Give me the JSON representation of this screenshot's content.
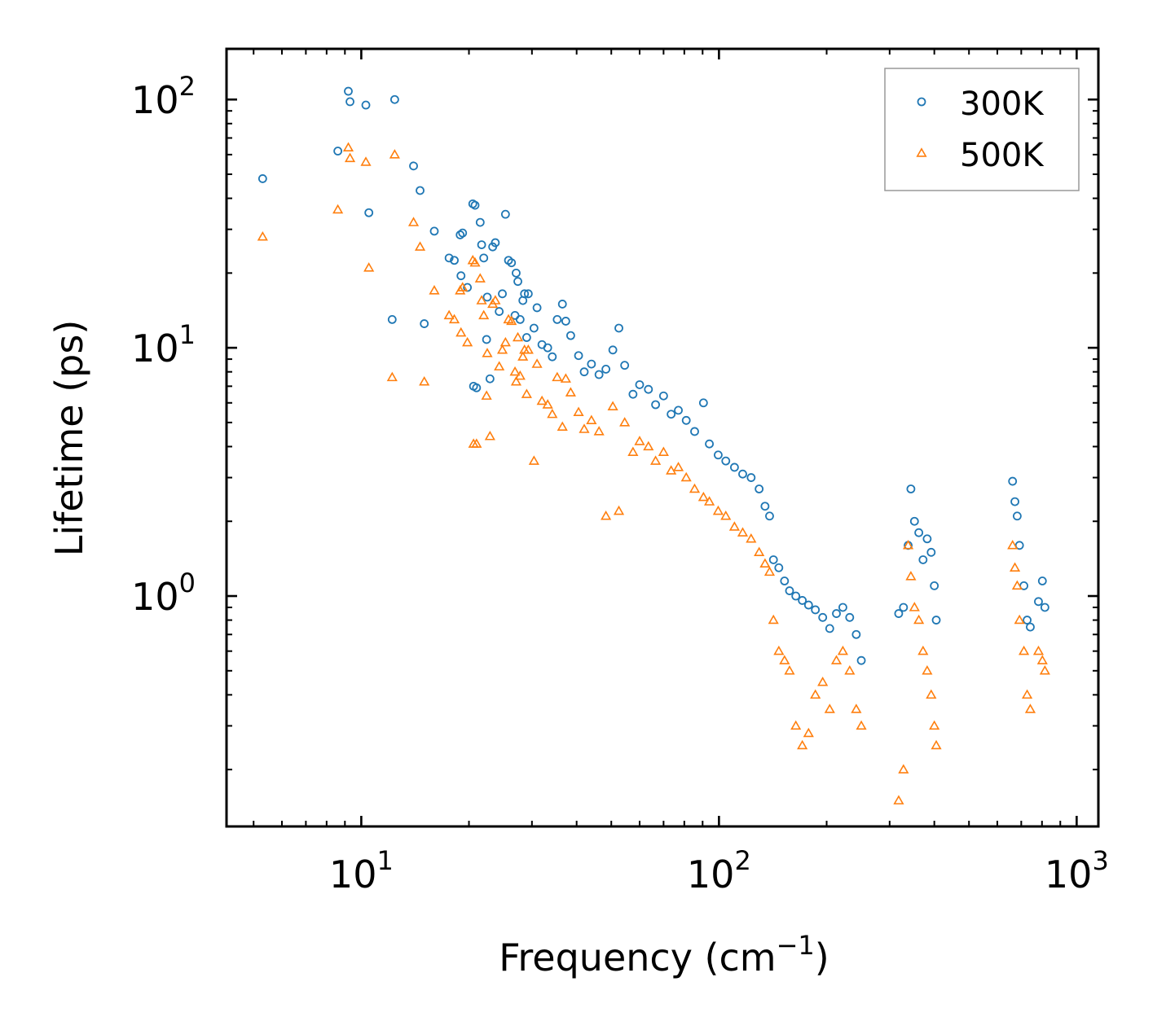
{
  "chart_data": {
    "type": "scatter",
    "title": "",
    "xlabel": "Frequency (cm",
    "xlabel_sup": "−1",
    "xlabel_end": ")",
    "ylabel": "Lifetime (ps)",
    "xscale": "log",
    "yscale": "log",
    "xlim": [
      4.2,
      1150
    ],
    "ylim": [
      0.118,
      160
    ],
    "x_ticks": [
      {
        "value": 10,
        "base": "10",
        "exp": "1"
      },
      {
        "value": 100,
        "base": "10",
        "exp": "2"
      },
      {
        "value": 1000,
        "base": "10",
        "exp": "3"
      }
    ],
    "y_ticks": [
      {
        "value": 1,
        "base": "10",
        "exp": "0"
      },
      {
        "value": 10,
        "base": "10",
        "exp": "1"
      },
      {
        "value": 100,
        "base": "10",
        "exp": "2"
      }
    ],
    "legend_position": "top-right",
    "series": [
      {
        "name": "300K",
        "color": "#1f77b4",
        "marker": "circle",
        "points": [
          [
            5.3,
            48
          ],
          [
            8.6,
            62
          ],
          [
            9.2,
            108
          ],
          [
            9.3,
            98
          ],
          [
            10.3,
            95
          ],
          [
            10.5,
            35
          ],
          [
            12.2,
            13
          ],
          [
            12.4,
            100
          ],
          [
            14,
            54
          ],
          [
            14.6,
            43
          ],
          [
            15,
            12.5
          ],
          [
            16,
            29.5
          ],
          [
            17.6,
            23
          ],
          [
            18.2,
            22.5
          ],
          [
            18.9,
            28.5
          ],
          [
            19,
            19.5
          ],
          [
            19.2,
            29
          ],
          [
            19.8,
            17.5
          ],
          [
            20.5,
            38
          ],
          [
            20.6,
            7
          ],
          [
            20.8,
            37.5
          ],
          [
            21,
            6.9
          ],
          [
            21.5,
            32
          ],
          [
            21.7,
            26
          ],
          [
            22,
            23
          ],
          [
            22.4,
            10.8
          ],
          [
            22.5,
            16
          ],
          [
            22.9,
            7.5
          ],
          [
            23.3,
            25.5
          ],
          [
            23.7,
            26.5
          ],
          [
            24.3,
            14
          ],
          [
            24.8,
            16.5
          ],
          [
            25.3,
            34.5
          ],
          [
            25.8,
            22.5
          ],
          [
            26.3,
            22
          ],
          [
            26.9,
            13.5
          ],
          [
            27.1,
            20
          ],
          [
            27.4,
            18.5
          ],
          [
            27.8,
            13
          ],
          [
            28.3,
            15.5
          ],
          [
            28.6,
            16.5
          ],
          [
            29,
            11
          ],
          [
            29.3,
            16.5
          ],
          [
            30.4,
            12
          ],
          [
            31,
            14.5
          ],
          [
            32,
            10.3
          ],
          [
            33.2,
            10
          ],
          [
            34.2,
            9.2
          ],
          [
            35.3,
            13
          ],
          [
            36.5,
            15
          ],
          [
            37.3,
            12.8
          ],
          [
            38.5,
            11.2
          ],
          [
            40.5,
            9.3
          ],
          [
            42,
            8
          ],
          [
            44,
            8.6
          ],
          [
            46.2,
            7.8
          ],
          [
            48.3,
            8.2
          ],
          [
            50.5,
            9.8
          ],
          [
            52.5,
            12
          ],
          [
            54.5,
            8.5
          ],
          [
            57.5,
            6.5
          ],
          [
            60,
            7.1
          ],
          [
            63.5,
            6.8
          ],
          [
            66.5,
            5.9
          ],
          [
            70,
            6.4
          ],
          [
            73.5,
            5.4
          ],
          [
            77,
            5.6
          ],
          [
            81,
            5.1
          ],
          [
            85.5,
            4.6
          ],
          [
            90.5,
            6
          ],
          [
            94,
            4.1
          ],
          [
            99.5,
            3.7
          ],
          [
            104.5,
            3.5
          ],
          [
            110.5,
            3.3
          ],
          [
            116.5,
            3.1
          ],
          [
            123,
            3
          ],
          [
            129.5,
            2.7
          ],
          [
            134.5,
            2.3
          ],
          [
            138.5,
            2.1
          ],
          [
            142,
            1.4
          ],
          [
            147,
            1.3
          ],
          [
            152.5,
            1.15
          ],
          [
            157.5,
            1.05
          ],
          [
            164,
            1
          ],
          [
            171,
            0.96
          ],
          [
            178,
            0.92
          ],
          [
            186,
            0.88
          ],
          [
            195,
            0.82
          ],
          [
            204,
            0.74
          ],
          [
            213,
            0.85
          ],
          [
            222,
            0.9
          ],
          [
            232,
            0.82
          ],
          [
            242,
            0.7
          ],
          [
            250,
            0.55
          ],
          [
            318,
            0.85
          ],
          [
            328,
            0.9
          ],
          [
            338,
            1.6
          ],
          [
            344,
            2.7
          ],
          [
            352,
            2
          ],
          [
            362,
            1.8
          ],
          [
            372,
            1.4
          ],
          [
            382,
            1.7
          ],
          [
            392,
            1.5
          ],
          [
            400,
            1.1
          ],
          [
            405,
            0.8
          ],
          [
            662,
            2.9
          ],
          [
            672,
            2.4
          ],
          [
            682,
            2.1
          ],
          [
            692,
            1.6
          ],
          [
            712,
            1.1
          ],
          [
            727,
            0.8
          ],
          [
            742,
            0.75
          ],
          [
            782,
            0.95
          ],
          [
            802,
            1.15
          ],
          [
            815,
            0.9
          ]
        ]
      },
      {
        "name": "500K",
        "color": "#ff7f0e",
        "marker": "triangle",
        "points": [
          [
            5.3,
            28
          ],
          [
            8.6,
            36
          ],
          [
            9.2,
            64
          ],
          [
            9.3,
            58
          ],
          [
            10.3,
            56
          ],
          [
            10.5,
            21
          ],
          [
            12.2,
            7.6
          ],
          [
            12.4,
            60
          ],
          [
            14,
            32
          ],
          [
            14.6,
            25.5
          ],
          [
            15,
            7.3
          ],
          [
            16,
            17
          ],
          [
            17.6,
            13.5
          ],
          [
            18.2,
            13
          ],
          [
            18.9,
            17
          ],
          [
            19,
            11.5
          ],
          [
            19.2,
            17.5
          ],
          [
            19.8,
            10.5
          ],
          [
            20.5,
            22.5
          ],
          [
            20.6,
            4.1
          ],
          [
            20.8,
            22
          ],
          [
            21,
            4.1
          ],
          [
            21.5,
            19
          ],
          [
            21.7,
            15.5
          ],
          [
            22,
            13.5
          ],
          [
            22.4,
            6.4
          ],
          [
            22.5,
            9.5
          ],
          [
            22.9,
            4.4
          ],
          [
            23.3,
            15
          ],
          [
            23.7,
            15.5
          ],
          [
            24.3,
            8.4
          ],
          [
            24.8,
            9.8
          ],
          [
            25.3,
            10.5
          ],
          [
            25.8,
            13
          ],
          [
            26.3,
            12.8
          ],
          [
            26.9,
            8
          ],
          [
            27.1,
            7.3
          ],
          [
            27.4,
            11
          ],
          [
            27.8,
            7.7
          ],
          [
            28.3,
            9.2
          ],
          [
            28.6,
            9.8
          ],
          [
            29,
            6.5
          ],
          [
            29.3,
            9.8
          ],
          [
            30.4,
            3.5
          ],
          [
            31,
            8.6
          ],
          [
            32,
            6.1
          ],
          [
            33.2,
            5.9
          ],
          [
            34.2,
            5.4
          ],
          [
            35.3,
            7.6
          ],
          [
            36.5,
            4.8
          ],
          [
            37.3,
            7.5
          ],
          [
            38.5,
            6.6
          ],
          [
            40.5,
            5.5
          ],
          [
            42,
            4.7
          ],
          [
            44,
            5.1
          ],
          [
            46.2,
            4.6
          ],
          [
            48.3,
            2.1
          ],
          [
            50.5,
            5.8
          ],
          [
            52.5,
            2.2
          ],
          [
            54.5,
            5
          ],
          [
            57.5,
            3.8
          ],
          [
            60,
            4.2
          ],
          [
            63.5,
            4
          ],
          [
            66.5,
            3.5
          ],
          [
            70,
            3.8
          ],
          [
            73.5,
            3.2
          ],
          [
            77,
            3.3
          ],
          [
            81,
            3
          ],
          [
            85.5,
            2.7
          ],
          [
            90.5,
            2.5
          ],
          [
            94,
            2.4
          ],
          [
            99.5,
            2.2
          ],
          [
            104.5,
            2.1
          ],
          [
            110.5,
            1.9
          ],
          [
            116.5,
            1.8
          ],
          [
            123,
            1.7
          ],
          [
            129.5,
            1.5
          ],
          [
            134.5,
            1.35
          ],
          [
            138.5,
            1.25
          ],
          [
            142,
            0.8
          ],
          [
            147,
            0.6
          ],
          [
            152.5,
            0.55
          ],
          [
            157.5,
            0.5
          ],
          [
            164,
            0.3
          ],
          [
            171,
            0.25
          ],
          [
            178,
            0.28
          ],
          [
            186,
            0.4
          ],
          [
            195,
            0.45
          ],
          [
            204,
            0.35
          ],
          [
            213,
            0.55
          ],
          [
            222,
            0.6
          ],
          [
            232,
            0.5
          ],
          [
            242,
            0.35
          ],
          [
            250,
            0.3
          ],
          [
            318,
            0.15
          ],
          [
            328,
            0.2
          ],
          [
            338,
            1.6
          ],
          [
            344,
            1.2
          ],
          [
            352,
            0.9
          ],
          [
            362,
            0.8
          ],
          [
            372,
            0.6
          ],
          [
            382,
            0.5
          ],
          [
            392,
            0.4
          ],
          [
            400,
            0.3
          ],
          [
            405,
            0.25
          ],
          [
            662,
            1.6
          ],
          [
            672,
            1.3
          ],
          [
            682,
            1.1
          ],
          [
            692,
            0.8
          ],
          [
            712,
            0.6
          ],
          [
            727,
            0.4
          ],
          [
            742,
            0.35
          ],
          [
            782,
            0.6
          ],
          [
            802,
            0.55
          ],
          [
            815,
            0.5
          ]
        ]
      }
    ]
  }
}
